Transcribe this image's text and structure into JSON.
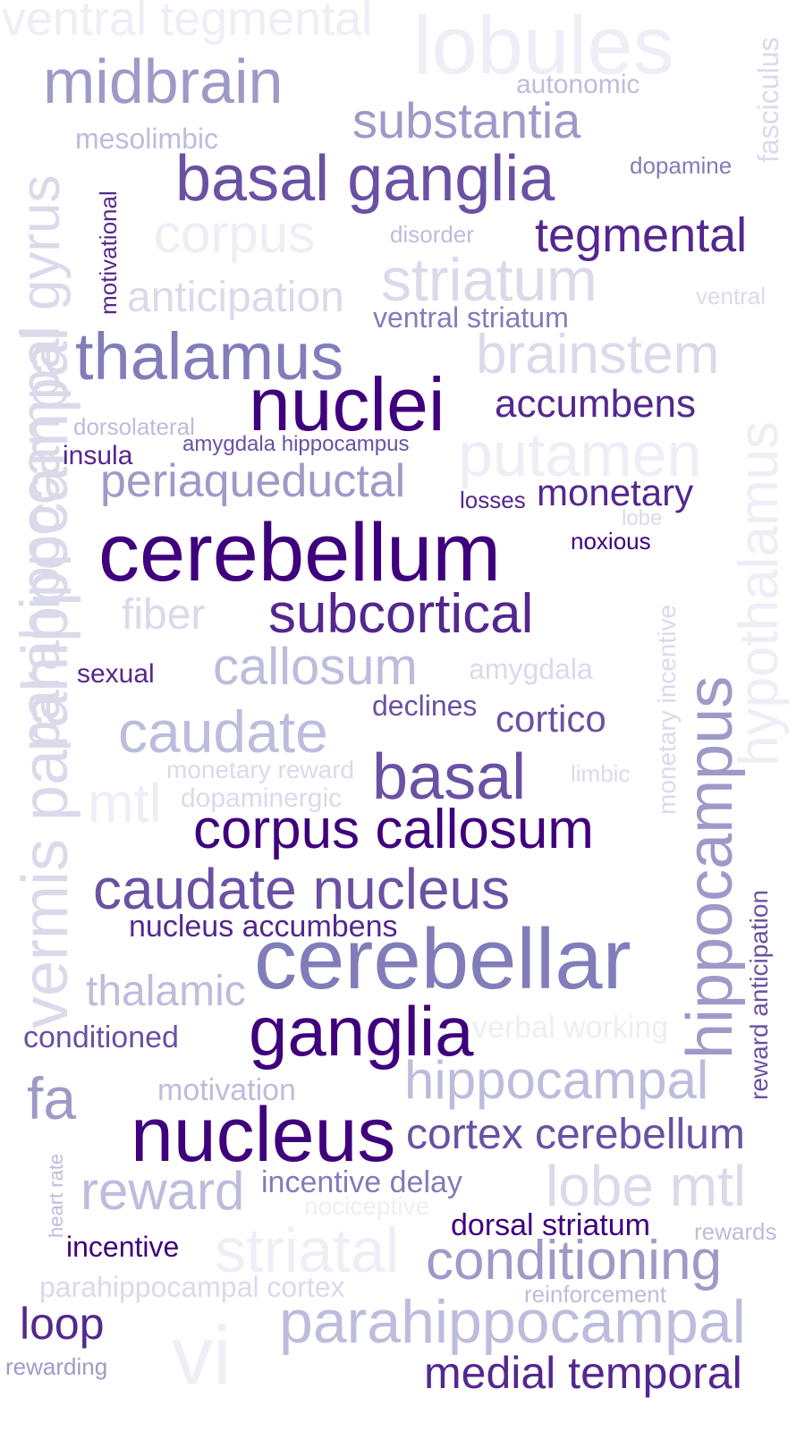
{
  "palette": {
    "darkest": "#3f007d",
    "dark": "#54278f",
    "medium": "#6a51a3",
    "mid": "#807dba",
    "light": "#9e9ac8",
    "lighter": "#bcbddc",
    "pale": "#dadaeb",
    "faint": "#efedf5"
  },
  "words": [
    {
      "text": "ventral tegmental",
      "color": "#efedf5"
    },
    {
      "text": "lobules",
      "color": "#efedf5"
    },
    {
      "text": "fasciculus",
      "color": "#dadaeb"
    },
    {
      "text": "midbrain",
      "color": "#9e9ac8"
    },
    {
      "text": "autonomic",
      "color": "#bcbddc"
    },
    {
      "text": "substantia",
      "color": "#9e9ac8"
    },
    {
      "text": "mesolimbic",
      "color": "#bcbddc"
    },
    {
      "text": "dopamine",
      "color": "#807dba"
    },
    {
      "text": "basal ganglia",
      "color": "#6a51a3"
    },
    {
      "text": "parahippocampal gyrus",
      "color": "#dadaeb"
    },
    {
      "text": "motivational",
      "color": "#54278f"
    },
    {
      "text": "corpus",
      "color": "#efedf5"
    },
    {
      "text": "disorder",
      "color": "#bcbddc"
    },
    {
      "text": "tegmental",
      "color": "#54278f"
    },
    {
      "text": "anticipation",
      "color": "#dadaeb"
    },
    {
      "text": "striatum",
      "color": "#dadaeb"
    },
    {
      "text": "ventral",
      "color": "#dadaeb"
    },
    {
      "text": "ventral striatum",
      "color": "#807dba"
    },
    {
      "text": "thalamus",
      "color": "#807dba"
    },
    {
      "text": "brainstem",
      "color": "#dadaeb"
    },
    {
      "text": "nuclei",
      "color": "#3f007d"
    },
    {
      "text": "accumbens",
      "color": "#54278f"
    },
    {
      "text": "hypothalamus",
      "color": "#efedf5"
    },
    {
      "text": "dorsolateral",
      "color": "#bcbddc"
    },
    {
      "text": "insula",
      "color": "#54278f"
    },
    {
      "text": "amygdala hippocampus",
      "color": "#6a51a3"
    },
    {
      "text": "putamen",
      "color": "#efedf5"
    },
    {
      "text": "periaqueductal",
      "color": "#9e9ac8"
    },
    {
      "text": "losses",
      "color": "#54278f"
    },
    {
      "text": "monetary",
      "color": "#54278f"
    },
    {
      "text": "lobe",
      "color": "#dadaeb"
    },
    {
      "text": "cerebellum",
      "color": "#3f007d"
    },
    {
      "text": "noxious",
      "color": "#3f007d"
    },
    {
      "text": "vermis parahippocampal",
      "color": "#dadaeb"
    },
    {
      "text": "monetary incentive",
      "color": "#dadaeb"
    },
    {
      "text": "fiber",
      "color": "#dadaeb"
    },
    {
      "text": "subcortical",
      "color": "#54278f"
    },
    {
      "text": "sexual",
      "color": "#54278f"
    },
    {
      "text": "callosum",
      "color": "#bcbddc"
    },
    {
      "text": "amygdala",
      "color": "#dadaeb"
    },
    {
      "text": "hippocampus",
      "color": "#9e9ac8"
    },
    {
      "text": "declines",
      "color": "#6a51a3"
    },
    {
      "text": "caudate",
      "color": "#bcbddc"
    },
    {
      "text": "cortico",
      "color": "#6a51a3"
    },
    {
      "text": "monetary reward",
      "color": "#dadaeb"
    },
    {
      "text": "basal",
      "color": "#6a51a3"
    },
    {
      "text": "limbic",
      "color": "#dadaeb"
    },
    {
      "text": "mtl",
      "color": "#efedf5"
    },
    {
      "text": "dopaminergic",
      "color": "#dadaeb"
    },
    {
      "text": "corpus callosum",
      "color": "#3f007d"
    },
    {
      "text": "reward anticipation",
      "color": "#6a51a3"
    },
    {
      "text": "caudate nucleus",
      "color": "#6a51a3"
    },
    {
      "text": "nucleus accumbens",
      "color": "#54278f"
    },
    {
      "text": "cerebellar",
      "color": "#807dba"
    },
    {
      "text": "thalamic",
      "color": "#bcbddc"
    },
    {
      "text": "verbal working",
      "color": "#efedf5"
    },
    {
      "text": "conditioned",
      "color": "#6a51a3"
    },
    {
      "text": "ganglia",
      "color": "#3f007d"
    },
    {
      "text": "fa",
      "color": "#9e9ac8"
    },
    {
      "text": "motivation",
      "color": "#bcbddc"
    },
    {
      "text": "hippocampal",
      "color": "#bcbddc"
    },
    {
      "text": "nucleus",
      "color": "#3f007d"
    },
    {
      "text": "cortex cerebellum",
      "color": "#6a51a3"
    },
    {
      "text": "heart rate",
      "color": "#bcbddc"
    },
    {
      "text": "reward",
      "color": "#bcbddc"
    },
    {
      "text": "incentive delay",
      "color": "#807dba"
    },
    {
      "text": "lobe mtl",
      "color": "#dadaeb"
    },
    {
      "text": "nociceptive",
      "color": "#efedf5"
    },
    {
      "text": "dorsal striatum",
      "color": "#3f007d"
    },
    {
      "text": "rewards",
      "color": "#bcbddc"
    },
    {
      "text": "incentive",
      "color": "#3f007d"
    },
    {
      "text": "striatal",
      "color": "#efedf5"
    },
    {
      "text": "conditioning",
      "color": "#9e9ac8"
    },
    {
      "text": "parahippocampal cortex",
      "color": "#dadaeb"
    },
    {
      "text": "reinforcement",
      "color": "#bcbddc"
    },
    {
      "text": "loop",
      "color": "#54278f"
    },
    {
      "text": "vi",
      "color": "#efedf5"
    },
    {
      "text": "parahippocampal",
      "color": "#bcbddc"
    },
    {
      "text": "rewarding",
      "color": "#9e9ac8"
    },
    {
      "text": "medial temporal",
      "color": "#54278f"
    }
  ]
}
